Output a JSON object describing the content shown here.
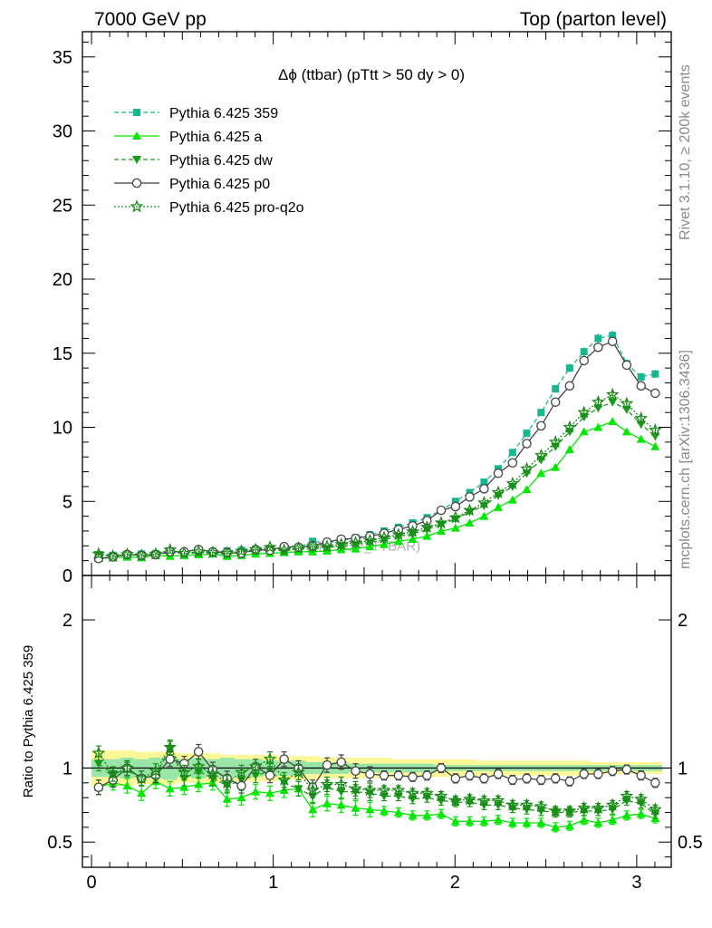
{
  "header": {
    "left": "7000 GeV pp",
    "right": "Top (parton level)"
  },
  "side": {
    "rivet": "Rivet 3.1.10, ≥ 200k events",
    "mcplots": "mcplots.cern.ch [arXiv:1306.3436]"
  },
  "chart_data": {
    "type": "line",
    "title": "Δϕ (ttbar) (pTtt > 50 dy > 0)",
    "watermark": "(MC-TOP_TTBAR)",
    "xlim": [
      -0.05,
      3.19
    ],
    "main_ylim": [
      0,
      36.7
    ],
    "ratio_ylim": [
      0.33,
      2.3
    ],
    "x_ticks": [
      "0",
      "1",
      "2",
      "3"
    ],
    "main_y_ticks": [
      "0",
      "5",
      "10",
      "15",
      "20",
      "25",
      "30",
      "35"
    ],
    "ratio_y_ticks": [
      "0.5",
      "1",
      "2"
    ],
    "ratio_ylabel": "Ratio to Pythia 6.425 359",
    "x": [
      0.039,
      0.118,
      0.196,
      0.275,
      0.353,
      0.432,
      0.51,
      0.589,
      0.667,
      0.746,
      0.825,
      0.903,
      0.982,
      1.06,
      1.139,
      1.217,
      1.296,
      1.374,
      1.453,
      1.532,
      1.61,
      1.689,
      1.767,
      1.846,
      1.924,
      2.003,
      2.081,
      2.16,
      2.238,
      2.317,
      2.395,
      2.474,
      2.553,
      2.631,
      2.71,
      2.788,
      2.867,
      2.945,
      3.024,
      3.102
    ],
    "series": [
      {
        "name": "Pythia 6.425 359",
        "color": "#17b890",
        "marker": "square",
        "dash": "5,3",
        "values": [
          1.32,
          1.36,
          1.42,
          1.45,
          1.48,
          1.51,
          1.55,
          1.58,
          1.62,
          1.66,
          1.7,
          1.74,
          1.79,
          1.84,
          1.9,
          2.3,
          2.2,
          2.35,
          2.55,
          2.75,
          3.0,
          3.25,
          3.55,
          3.9,
          4.4,
          5.0,
          5.6,
          6.3,
          7.2,
          8.3,
          9.6,
          11.0,
          12.6,
          14.0,
          15.1,
          16.0,
          16.2,
          14.3,
          13.4,
          13.6
        ]
      },
      {
        "name": "Pythia 6.425 a",
        "color": "#00e800",
        "marker": "triangle-up",
        "dash": "",
        "values": [
          1.15,
          1.2,
          1.25,
          1.2,
          1.35,
          1.3,
          1.35,
          1.4,
          1.45,
          1.3,
          1.35,
          1.45,
          1.5,
          1.55,
          1.6,
          1.6,
          1.65,
          1.75,
          1.8,
          1.95,
          2.1,
          2.3,
          2.45,
          2.65,
          3.0,
          3.2,
          3.55,
          4.0,
          4.6,
          5.1,
          5.8,
          6.9,
          7.3,
          8.5,
          9.7,
          10.0,
          10.4,
          9.7,
          9.2,
          8.7
        ]
      },
      {
        "name": "Pythia 6.425 dw",
        "color": "#189c18",
        "marker": "triangle-down",
        "dash": "5,3",
        "values": [
          1.4,
          1.3,
          1.4,
          1.35,
          1.4,
          1.65,
          1.45,
          1.55,
          1.5,
          1.45,
          1.55,
          1.65,
          1.75,
          1.65,
          1.8,
          1.8,
          1.9,
          1.95,
          2.1,
          2.25,
          2.4,
          2.65,
          2.8,
          3.1,
          3.45,
          3.8,
          4.3,
          4.7,
          5.4,
          6.0,
          6.9,
          7.8,
          8.7,
          9.7,
          10.7,
          11.3,
          11.7,
          11.2,
          10.2,
          9.4
        ]
      },
      {
        "name": "Pythia 6.425 p0",
        "color": "#444444",
        "marker": "circle-open",
        "dash": "",
        "values": [
          1.15,
          1.25,
          1.42,
          1.35,
          1.4,
          1.6,
          1.6,
          1.75,
          1.6,
          1.55,
          1.5,
          1.75,
          1.7,
          1.95,
          1.9,
          2.0,
          2.25,
          2.45,
          2.5,
          2.65,
          2.85,
          3.1,
          3.35,
          3.7,
          4.4,
          4.65,
          5.3,
          5.85,
          6.9,
          7.6,
          8.9,
          10.1,
          11.7,
          12.8,
          14.5,
          15.4,
          15.8,
          14.2,
          12.8,
          12.3
        ]
      },
      {
        "name": "Pythia 6.425 pro-q2o",
        "color": "#1a8a1a",
        "marker": "star-open",
        "dash": "2,2",
        "values": [
          1.45,
          1.3,
          1.42,
          1.35,
          1.45,
          1.72,
          1.5,
          1.6,
          1.55,
          1.5,
          1.65,
          1.75,
          1.9,
          1.7,
          1.85,
          1.95,
          1.95,
          2.1,
          2.2,
          2.35,
          2.55,
          2.75,
          2.95,
          3.25,
          3.55,
          3.9,
          4.4,
          4.9,
          5.6,
          6.2,
          7.2,
          8.1,
          9.0,
          10.0,
          11.0,
          11.7,
          12.2,
          11.6,
          10.6,
          9.8
        ]
      }
    ],
    "ratio_series": [
      {
        "name": "Pythia 6.425 359",
        "values": [
          1,
          1,
          1,
          1,
          1,
          1,
          1,
          1,
          1,
          1,
          1,
          1,
          1,
          1,
          1,
          1,
          1,
          1,
          1,
          1,
          1,
          1,
          1,
          1,
          1,
          1,
          1,
          1,
          1,
          1,
          1,
          1,
          1,
          1,
          1,
          1,
          1,
          1,
          1,
          1
        ]
      },
      {
        "name": "Pythia 6.425 a",
        "values": [
          0.87,
          0.9,
          0.88,
          0.83,
          0.91,
          0.86,
          0.87,
          0.89,
          0.9,
          0.79,
          0.8,
          0.84,
          0.83,
          0.85,
          0.86,
          0.72,
          0.76,
          0.75,
          0.73,
          0.72,
          0.71,
          0.7,
          0.68,
          0.68,
          0.69,
          0.64,
          0.64,
          0.64,
          0.65,
          0.63,
          0.63,
          0.63,
          0.6,
          0.61,
          0.65,
          0.63,
          0.65,
          0.68,
          0.69,
          0.66
        ]
      },
      {
        "name": "Pythia 6.425 dw",
        "values": [
          1.03,
          0.96,
          0.99,
          0.93,
          0.95,
          1.13,
          0.93,
          0.98,
          0.93,
          0.88,
          0.92,
          0.95,
          0.98,
          0.9,
          0.86,
          0.81,
          0.87,
          0.84,
          0.84,
          0.83,
          0.81,
          0.81,
          0.79,
          0.8,
          0.78,
          0.77,
          0.77,
          0.75,
          0.75,
          0.73,
          0.72,
          0.71,
          0.7,
          0.7,
          0.71,
          0.71,
          0.72,
          0.78,
          0.76,
          0.69
        ]
      },
      {
        "name": "Pythia 6.425 p0",
        "values": [
          0.87,
          0.92,
          1.0,
          0.93,
          0.95,
          1.06,
          1.03,
          1.11,
          0.99,
          0.93,
          0.88,
          1.01,
          0.95,
          1.06,
          1.0,
          0.87,
          1.02,
          1.04,
          0.98,
          0.96,
          0.95,
          0.95,
          0.94,
          0.95,
          1.0,
          0.93,
          0.95,
          0.93,
          0.96,
          0.92,
          0.93,
          0.92,
          0.93,
          0.91,
          0.96,
          0.96,
          0.98,
          0.99,
          0.95,
          0.9
        ]
      },
      {
        "name": "Pythia 6.425 pro-q2o",
        "values": [
          1.1,
          0.96,
          1.0,
          0.93,
          0.98,
          1.14,
          0.97,
          1.01,
          0.96,
          0.9,
          0.97,
          1.01,
          1.06,
          0.92,
          0.97,
          0.85,
          0.89,
          0.89,
          0.86,
          0.85,
          0.85,
          0.85,
          0.83,
          0.83,
          0.81,
          0.78,
          0.79,
          0.78,
          0.78,
          0.75,
          0.75,
          0.74,
          0.71,
          0.71,
          0.73,
          0.73,
          0.75,
          0.81,
          0.79,
          0.72
        ]
      }
    ],
    "band_yellow": {
      "lo": [
        0.88,
        0.88,
        0.88,
        0.89,
        0.89,
        0.89,
        0.9,
        0.9,
        0.9,
        0.91,
        0.91,
        0.91,
        0.91,
        0.92,
        0.92,
        0.92,
        0.93,
        0.93,
        0.93,
        0.93,
        0.93,
        0.94,
        0.94,
        0.94,
        0.94,
        0.94,
        0.94,
        0.95,
        0.95,
        0.95,
        0.95,
        0.95,
        0.95,
        0.95,
        0.95,
        0.96,
        0.96,
        0.96,
        0.96,
        0.96
      ],
      "hi": [
        1.12,
        1.12,
        1.12,
        1.11,
        1.11,
        1.11,
        1.1,
        1.1,
        1.1,
        1.09,
        1.09,
        1.09,
        1.09,
        1.08,
        1.08,
        1.08,
        1.07,
        1.07,
        1.07,
        1.07,
        1.07,
        1.06,
        1.06,
        1.06,
        1.06,
        1.06,
        1.06,
        1.05,
        1.05,
        1.05,
        1.05,
        1.05,
        1.05,
        1.05,
        1.05,
        1.04,
        1.04,
        1.04,
        1.04,
        1.04
      ]
    },
    "band_green": {
      "lo": [
        0.94,
        0.94,
        0.93,
        0.94,
        0.93,
        0.92,
        0.94,
        0.93,
        0.94,
        0.93,
        0.94,
        0.94,
        0.95,
        0.95,
        0.95,
        0.96,
        0.96,
        0.96,
        0.97,
        0.97,
        0.97,
        0.97,
        0.97,
        0.97,
        0.98,
        0.98,
        0.98,
        0.98,
        0.98,
        0.98,
        0.98,
        0.98,
        0.98,
        0.98,
        0.98,
        0.98,
        0.98,
        0.98,
        0.98,
        0.98
      ],
      "hi": [
        1.06,
        1.06,
        1.07,
        1.06,
        1.07,
        1.08,
        1.06,
        1.07,
        1.06,
        1.07,
        1.06,
        1.06,
        1.05,
        1.05,
        1.05,
        1.04,
        1.04,
        1.04,
        1.03,
        1.03,
        1.03,
        1.03,
        1.03,
        1.03,
        1.02,
        1.02,
        1.02,
        1.02,
        1.02,
        1.02,
        1.02,
        1.02,
        1.02,
        1.02,
        1.02,
        1.02,
        1.02,
        1.02,
        1.02,
        1.02
      ]
    }
  }
}
